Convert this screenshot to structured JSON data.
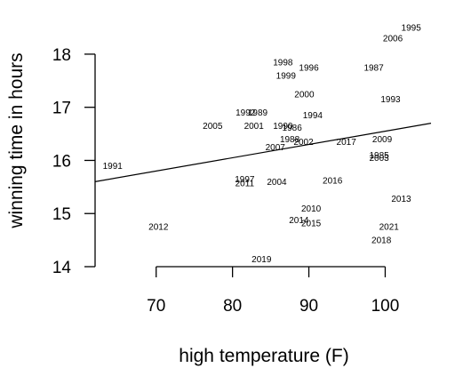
{
  "chart_data": {
    "type": "scatter",
    "xlabel": "high temperature (F)",
    "ylabel": "winning time in hours",
    "xlim": [
      62,
      106
    ],
    "ylim": [
      14,
      18.3
    ],
    "x_ticks": [
      70,
      80,
      90,
      100
    ],
    "y_ticks": [
      14,
      15,
      16,
      17,
      18
    ],
    "marker": "year-label",
    "points": [
      {
        "label": "1995",
        "x": 103.4,
        "y": 18.5
      },
      {
        "label": "2006",
        "x": 101.0,
        "y": 18.3
      },
      {
        "label": "1998",
        "x": 86.6,
        "y": 17.85
      },
      {
        "label": "1996",
        "x": 90.0,
        "y": 17.75
      },
      {
        "label": "1987",
        "x": 98.5,
        "y": 17.75
      },
      {
        "label": "1999",
        "x": 87.0,
        "y": 17.6
      },
      {
        "label": "2000",
        "x": 89.4,
        "y": 17.25
      },
      {
        "label": "1993",
        "x": 100.7,
        "y": 17.15
      },
      {
        "label": "1992",
        "x": 81.7,
        "y": 16.9
      },
      {
        "label": "1989",
        "x": 83.3,
        "y": 16.9
      },
      {
        "label": "1994",
        "x": 90.5,
        "y": 16.85
      },
      {
        "label": "2005",
        "x": 77.4,
        "y": 16.65
      },
      {
        "label": "2001",
        "x": 82.8,
        "y": 16.65
      },
      {
        "label": "1990",
        "x": 86.6,
        "y": 16.65
      },
      {
        "label": "1986",
        "x": 87.8,
        "y": 16.62
      },
      {
        "label": "1988",
        "x": 87.5,
        "y": 16.4
      },
      {
        "label": "2002",
        "x": 89.3,
        "y": 16.35
      },
      {
        "label": "2017",
        "x": 94.9,
        "y": 16.35
      },
      {
        "label": "2009",
        "x": 99.6,
        "y": 16.4
      },
      {
        "label": "2007",
        "x": 85.6,
        "y": 16.25
      },
      {
        "label": "1985",
        "x": 99.2,
        "y": 16.1
      },
      {
        "label": "2003",
        "x": 99.2,
        "y": 16.05
      },
      {
        "label": "1991",
        "x": 64.3,
        "y": 15.9
      },
      {
        "label": "1997",
        "x": 81.6,
        "y": 15.65
      },
      {
        "label": "2011",
        "x": 81.6,
        "y": 15.57
      },
      {
        "label": "2004",
        "x": 85.8,
        "y": 15.6
      },
      {
        "label": "2016",
        "x": 93.1,
        "y": 15.62
      },
      {
        "label": "2013",
        "x": 102.1,
        "y": 15.28
      },
      {
        "label": "2010",
        "x": 90.3,
        "y": 15.1
      },
      {
        "label": "2014",
        "x": 88.7,
        "y": 14.88
      },
      {
        "label": "2015",
        "x": 90.3,
        "y": 14.82
      },
      {
        "label": "2012",
        "x": 70.3,
        "y": 14.75
      },
      {
        "label": "2021",
        "x": 100.5,
        "y": 14.75
      },
      {
        "label": "2018",
        "x": 99.5,
        "y": 14.5
      },
      {
        "label": "2019",
        "x": 83.8,
        "y": 14.14
      }
    ],
    "regression_line": {
      "x": [
        62,
        106
      ],
      "y": [
        15.6,
        16.7
      ]
    }
  }
}
